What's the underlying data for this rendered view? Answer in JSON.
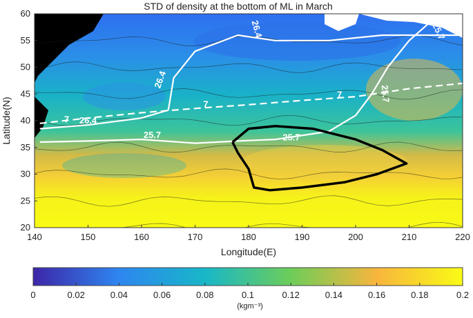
{
  "chart_data": {
    "type": "heatmap",
    "title": "STD of density at the bottom of ML in March",
    "xlabel": "Longitude(E)",
    "ylabel": "Latitude(N)",
    "xlim": [
      140,
      220
    ],
    "ylim": [
      20,
      60
    ],
    "x_ticks": [
      "140",
      "150",
      "160",
      "170",
      "180",
      "190",
      "200",
      "210",
      "220"
    ],
    "y_ticks": [
      "20",
      "25",
      "30",
      "35",
      "40",
      "45",
      "50",
      "55",
      "60"
    ],
    "colorbar": {
      "label": "(kgm⁻³)",
      "range": [
        0,
        0.2
      ],
      "ticks": [
        "0",
        "0.02",
        "0.04",
        "0.06",
        "0.08",
        "0.1",
        "0.12",
        "0.14",
        "0.16",
        "0.18",
        "0.2"
      ],
      "colors": [
        "#3d26a8",
        "#2e86f0",
        "#18b7c8",
        "#6dcd59",
        "#f8b53d",
        "#f9fb15"
      ]
    },
    "field_values": [
      {
        "lat": 55,
        "value": 0.04
      },
      {
        "lat": 50,
        "value": 0.07
      },
      {
        "lat": 45,
        "value": 0.09
      },
      {
        "lat": 40,
        "value": 0.11
      },
      {
        "lat": 35,
        "value": 0.13
      },
      {
        "lat": 30,
        "value": 0.15
      },
      {
        "lat": 25,
        "value": 0.19
      },
      {
        "lat": 20,
        "value": 0.2
      }
    ],
    "contours": [
      {
        "label": "26.4",
        "color": "#ffffff",
        "style": "solid",
        "points": [
          [
            141,
            38.5
          ],
          [
            150,
            39.2
          ],
          [
            160,
            40.5
          ],
          [
            165,
            42
          ],
          [
            166,
            48
          ],
          [
            170,
            53
          ],
          [
            178,
            56
          ],
          [
            185,
            55
          ],
          [
            195,
            55
          ],
          [
            200,
            55.5
          ],
          [
            205,
            56
          ],
          [
            215,
            56
          ],
          [
            220,
            56
          ]
        ]
      },
      {
        "label": "25.7",
        "color": "#ffffff",
        "style": "solid",
        "points": [
          [
            141,
            36
          ],
          [
            150,
            36.2
          ],
          [
            160,
            36.5
          ],
          [
            170,
            35.8
          ],
          [
            178,
            36.2
          ],
          [
            185,
            36.5
          ],
          [
            195,
            38
          ],
          [
            200,
            41
          ],
          [
            203,
            45
          ],
          [
            206,
            50
          ],
          [
            210,
            55
          ],
          [
            214,
            58.5
          ]
        ]
      },
      {
        "label": "7",
        "color": "#ffffff",
        "style": "dashed",
        "points": [
          [
            141,
            39.5
          ],
          [
            150,
            40.5
          ],
          [
            160,
            41.5
          ],
          [
            170,
            42.3
          ],
          [
            180,
            43
          ],
          [
            190,
            43.8
          ],
          [
            200,
            44.5
          ],
          [
            210,
            46
          ],
          [
            220,
            47
          ]
        ]
      },
      {
        "label": "",
        "color": "#000000",
        "style": "solid",
        "points": [
          [
            177,
            36
          ],
          [
            180,
            38.5
          ],
          [
            185,
            39
          ],
          [
            192,
            38.5
          ],
          [
            200,
            36.5
          ],
          [
            205,
            34.5
          ],
          [
            209.5,
            32
          ],
          [
            204,
            30
          ],
          [
            198,
            28.5
          ],
          [
            190,
            27.5
          ],
          [
            184,
            27
          ],
          [
            181,
            27.5
          ],
          [
            180,
            31
          ],
          [
            178,
            34
          ],
          [
            177,
            36
          ]
        ]
      }
    ],
    "contour_labels": [
      {
        "text": "26.4",
        "x": 181,
        "y": 57,
        "rotate": 75
      },
      {
        "text": "26.4",
        "x": 164,
        "y": 47.5,
        "rotate": -70
      },
      {
        "text": "26.4",
        "x": 150,
        "y": 39.5,
        "rotate": 0
      },
      {
        "text": "25.7",
        "x": 162,
        "y": 36.8,
        "rotate": 0
      },
      {
        "text": "25.7",
        "x": 188,
        "y": 36.3,
        "rotate": 0
      },
      {
        "text": "25.7",
        "x": 205,
        "y": 45,
        "rotate": 85
      },
      {
        "text": "25.7",
        "x": 215,
        "y": 56.5,
        "rotate": 65
      },
      {
        "text": "7",
        "x": 146,
        "y": 39.7,
        "rotate": 0
      },
      {
        "text": "7",
        "x": 172,
        "y": 42.5,
        "rotate": 0
      },
      {
        "text": "7",
        "x": 197,
        "y": 44.3,
        "rotate": 0
      }
    ]
  }
}
